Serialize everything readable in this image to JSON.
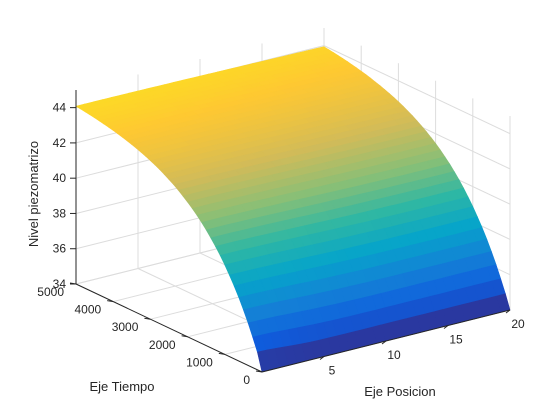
{
  "chart_data": {
    "type": "surface",
    "title": "",
    "xlabel": "Eje Posicion",
    "ylabel": "Eje Tiempo",
    "zlabel": "Nivel piezomatrizo",
    "xlim": [
      0,
      20
    ],
    "ylim": [
      0,
      5000
    ],
    "zlim": [
      34,
      45
    ],
    "xticks": [
      5,
      10,
      15,
      20
    ],
    "yticks": [
      0,
      1000,
      2000,
      3000,
      4000,
      5000
    ],
    "zticks": [
      34,
      36,
      38,
      40,
      42,
      44
    ],
    "grid": true,
    "colormap": "parula",
    "colormap_colors": [
      "#352a87",
      "#0f5cdd",
      "#1481d6",
      "#06a4ca",
      "#2eb7a4",
      "#87bf77",
      "#d1bb59",
      "#fec832",
      "#f9fb0e"
    ],
    "surface": {
      "description_values": {
        "boundary_x0_level": 44.5,
        "initial_level_t0": 34,
        "level_at_tmax_x0": 44.5,
        "level_at_tmax_xmax": 44.5
      },
      "x": [
        0,
        2,
        4,
        6,
        8,
        10,
        12,
        14,
        16,
        18,
        20
      ],
      "y": [
        0,
        500,
        1000,
        1500,
        2000,
        2500,
        3000,
        3500,
        4000,
        4500,
        5000
      ],
      "formula_note": "h(x,t) rises from 34 at t=0 toward 44.5, with h=44.5 at x=0 for t>0"
    }
  }
}
